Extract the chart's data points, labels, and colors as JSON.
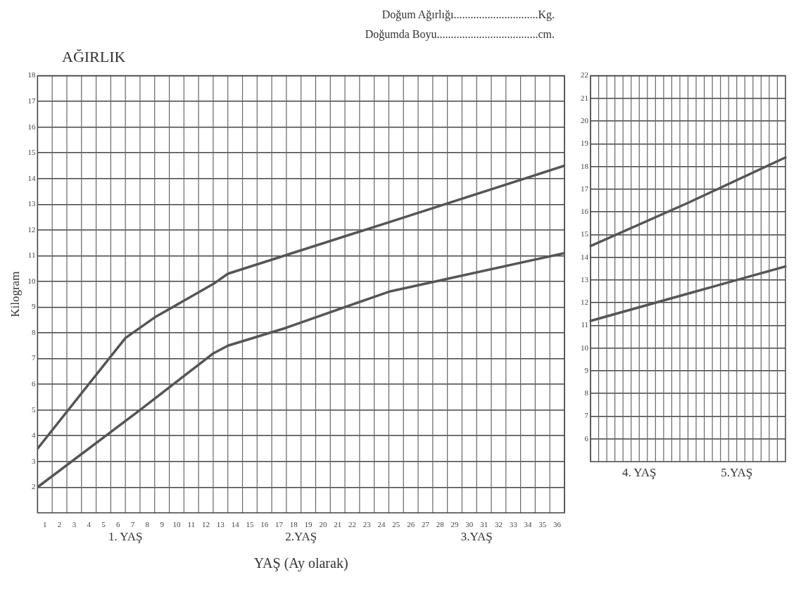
{
  "chart_data": [
    {
      "type": "line",
      "title": "AĞIRLIK",
      "subtitle": "Doğum Ağırlığı..............................Kg.\nDoğumda Boyu....................................cm.",
      "xlabel": "YAŞ (Ay olarak)",
      "ylabel": "Kilogram",
      "xlim": [
        0,
        36
      ],
      "xticks": [
        {
          "value": 0.5,
          "label": "1"
        },
        {
          "value": 1.5,
          "label": "2"
        },
        {
          "value": 2.5,
          "label": "3"
        },
        {
          "value": 3.5,
          "label": "4"
        },
        {
          "value": 4.5,
          "label": "5"
        },
        {
          "value": 5.5,
          "label": "6"
        },
        {
          "value": 6.5,
          "label": "7"
        },
        {
          "value": 7.5,
          "label": "8"
        },
        {
          "value": 8.5,
          "label": "9"
        },
        {
          "value": 9.5,
          "label": "10"
        },
        {
          "value": 10.5,
          "label": "11"
        },
        {
          "value": 11.5,
          "label": "12"
        },
        {
          "value": 12.5,
          "label": "13"
        },
        {
          "value": 13.5,
          "label": "14"
        },
        {
          "value": 14.5,
          "label": "15"
        },
        {
          "value": 15.5,
          "label": "16"
        },
        {
          "value": 16.5,
          "label": "17"
        },
        {
          "value": 17.5,
          "label": "18"
        },
        {
          "value": 18.5,
          "label": "19"
        },
        {
          "value": 19.5,
          "label": "20"
        },
        {
          "value": 20.5,
          "label": "21"
        },
        {
          "value": 21.5,
          "label": "22"
        },
        {
          "value": 22.5,
          "label": "23"
        },
        {
          "value": 23.5,
          "label": "24"
        },
        {
          "value": 24.5,
          "label": "25"
        },
        {
          "value": 25.5,
          "label": "26"
        },
        {
          "value": 26.5,
          "label": "27"
        },
        {
          "value": 27.5,
          "label": "28"
        },
        {
          "value": 28.5,
          "label": "29"
        },
        {
          "value": 29.5,
          "label": "30"
        },
        {
          "value": 30.5,
          "label": "31"
        },
        {
          "value": 31.5,
          "label": "32"
        },
        {
          "value": 32.5,
          "label": "33"
        },
        {
          "value": 33.5,
          "label": "34"
        },
        {
          "value": 34.5,
          "label": "35"
        },
        {
          "value": 35.5,
          "label": "36"
        }
      ],
      "ylim": [
        1,
        18
      ],
      "yticks": [
        2,
        3,
        4,
        5,
        6,
        7,
        8,
        9,
        10,
        11,
        12,
        13,
        14,
        15,
        16,
        17,
        18
      ],
      "grid": true,
      "annotations": [
        "1. YAŞ",
        "2.YAŞ",
        "3.YAŞ"
      ],
      "series": [
        {
          "color": "#555555",
          "x": [
            0,
            6,
            8,
            12,
            13,
            24,
            36
          ],
          "values": [
            3.5,
            7.8,
            8.6,
            9.9,
            10.3,
            12.3,
            14.5
          ]
        },
        {
          "color": "#555555",
          "x": [
            0,
            7,
            12,
            13,
            17,
            24,
            36
          ],
          "values": [
            2.0,
            5.0,
            7.2,
            7.5,
            8.2,
            9.6,
            11.1
          ]
        }
      ]
    },
    {
      "type": "line",
      "categories": [
        null,
        null,
        null
      ],
      "ylim": [
        5,
        22
      ],
      "yticks": [
        6,
        7,
        8,
        9,
        10,
        11,
        12,
        13,
        14,
        15,
        16,
        17,
        18,
        19,
        20,
        21,
        22
      ],
      "grid": true,
      "tick_labels": "y",
      "annotations": [
        "4. YAŞ",
        "5.YAŞ"
      ],
      "series": [
        {
          "color": "#555555",
          "values": [
            14.5,
            16.4,
            18.4
          ]
        },
        {
          "color": "#555555",
          "values": [
            11.2,
            12.4,
            13.6
          ]
        }
      ]
    }
  ]
}
